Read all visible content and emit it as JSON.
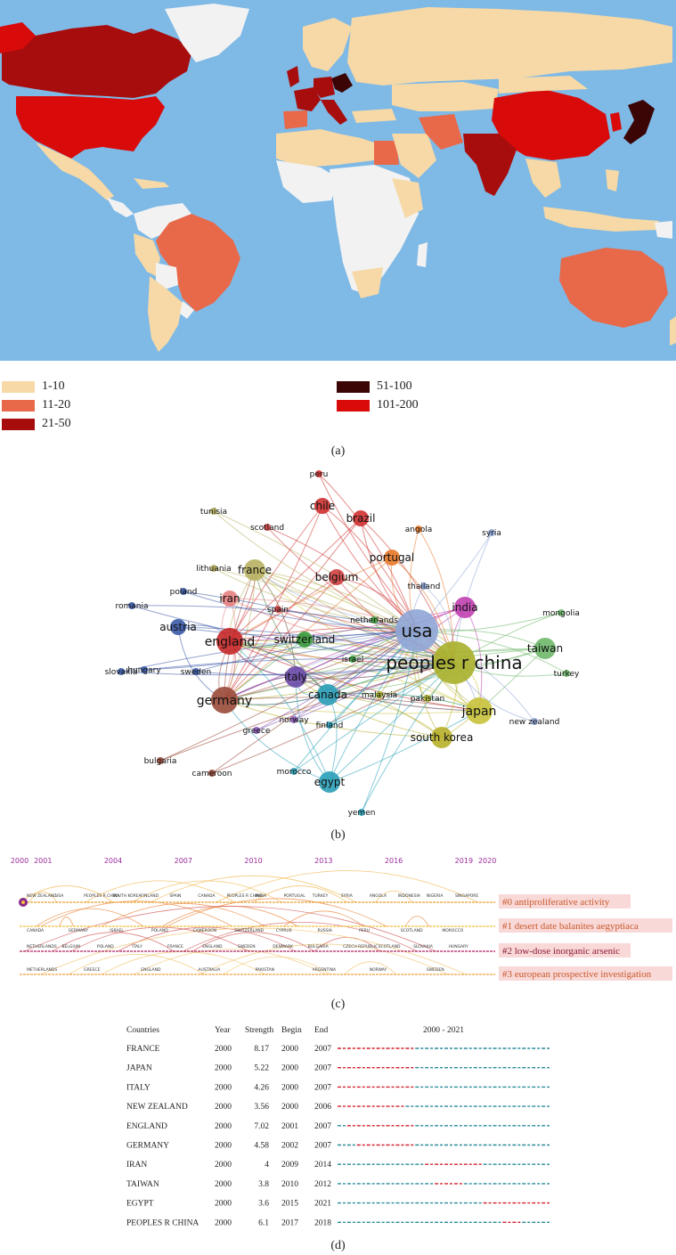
{
  "map": {
    "legend": [
      {
        "label": "1-10",
        "color": "#f6d9a6"
      },
      {
        "label": "11-20",
        "color": "#e8694a"
      },
      {
        "label": "21-50",
        "color": "#a80d0d"
      },
      {
        "label": "51-100",
        "color": "#3b0505"
      },
      {
        "label": "101-200",
        "color": "#d90a0a"
      }
    ],
    "colors": {
      "ocean": "#7fb9e6",
      "land_none": "#f2f2f2"
    }
  },
  "captions": {
    "a": "(a)",
    "b": "(b)",
    "c": "(c)",
    "d": "(d)"
  },
  "network": {
    "nodes": [
      {
        "label": "usa",
        "color": "#8ea6d6",
        "size": "xl"
      },
      {
        "label": "peoples r china",
        "color": "#a8b02a",
        "size": "xl"
      },
      {
        "label": "germany",
        "color": "#9a4a3a",
        "size": "l"
      },
      {
        "label": "england",
        "color": "#c62828",
        "size": "l"
      },
      {
        "label": "japan",
        "color": "#c8c23a",
        "size": "l"
      },
      {
        "label": "italy",
        "color": "#6a4aa8",
        "size": "m"
      },
      {
        "label": "canada",
        "color": "#2aa0b8",
        "size": "m"
      },
      {
        "label": "taiwan",
        "color": "#6fb86a",
        "size": "m"
      },
      {
        "label": "south korea",
        "color": "#b8b02a",
        "size": "m"
      },
      {
        "label": "france",
        "color": "#b8b060",
        "size": "m"
      },
      {
        "label": "egypt",
        "color": "#2aa0b8",
        "size": "m"
      },
      {
        "label": "switzerland",
        "color": "#3a9a3a",
        "size": "s"
      },
      {
        "label": "austria",
        "color": "#3a5aa8",
        "size": "s"
      },
      {
        "label": "india",
        "color": "#c040b0",
        "size": "m"
      },
      {
        "label": "brazil",
        "color": "#d03030",
        "size": "s"
      },
      {
        "label": "chile",
        "color": "#d03030",
        "size": "s"
      },
      {
        "label": "portugal",
        "color": "#e87a2a",
        "size": "s"
      },
      {
        "label": "belgium",
        "color": "#d04040",
        "size": "s"
      },
      {
        "label": "netherlands",
        "color": "#3a9a3a",
        "size": "xs"
      },
      {
        "label": "israel",
        "color": "#3a9a3a",
        "size": "xs"
      },
      {
        "label": "spain",
        "color": "#d04040",
        "size": "xs"
      },
      {
        "label": "iran",
        "color": "#e88080",
        "size": "s"
      },
      {
        "label": "poland",
        "color": "#3a5aa8",
        "size": "xs"
      },
      {
        "label": "sweden",
        "color": "#3a5aa8",
        "size": "xs"
      },
      {
        "label": "greece",
        "color": "#8a5ab8",
        "size": "xs"
      },
      {
        "label": "finland",
        "color": "#2aa0b8",
        "size": "xs"
      },
      {
        "label": "norway",
        "color": "#8a5ab8",
        "size": "xs"
      },
      {
        "label": "malaysia",
        "color": "#a8b02a",
        "size": "xs"
      },
      {
        "label": "pakistan",
        "color": "#a8b02a",
        "size": "xs"
      },
      {
        "label": "new zealand",
        "color": "#8ea6d6",
        "size": "xs"
      },
      {
        "label": "mongolia",
        "color": "#6fb86a",
        "size": "xs"
      },
      {
        "label": "turkey",
        "color": "#6fb86a",
        "size": "xs"
      },
      {
        "label": "thailand",
        "color": "#8ea6d6",
        "size": "xs"
      },
      {
        "label": "syria",
        "color": "#8ea6d6",
        "size": "xs"
      },
      {
        "label": "angola",
        "color": "#e87a2a",
        "size": "xs"
      },
      {
        "label": "peru",
        "color": "#d03030",
        "size": "xs"
      },
      {
        "label": "tunisia",
        "color": "#b8b060",
        "size": "xs"
      },
      {
        "label": "scotland",
        "color": "#d04040",
        "size": "xs"
      },
      {
        "label": "lithuania",
        "color": "#b8b060",
        "size": "xs"
      },
      {
        "label": "romania",
        "color": "#3a5aa8",
        "size": "xs"
      },
      {
        "label": "hungary",
        "color": "#3a5aa8",
        "size": "xs"
      },
      {
        "label": "slovakia",
        "color": "#3a5aa8",
        "size": "xs"
      },
      {
        "label": "bulgaria",
        "color": "#9a4a3a",
        "size": "xs"
      },
      {
        "label": "cameroon",
        "color": "#9a4a3a",
        "size": "xs"
      },
      {
        "label": "morocco",
        "color": "#2aa0b8",
        "size": "xs"
      },
      {
        "label": "yemen",
        "color": "#2aa0b8",
        "size": "xs"
      }
    ]
  },
  "timeline": {
    "years": [
      "2000",
      "2001",
      "2004",
      "2007",
      "2010",
      "2013",
      "2016",
      "2019",
      "2020"
    ],
    "clusters": [
      {
        "label": "#0 antiproliferative activity",
        "color": "#e8a030"
      },
      {
        "label": "#1 desert date balanites aegyptiaca",
        "color": "#f0c040"
      },
      {
        "label": "#2 low-dose inorganic arsenic",
        "color": "#b02060"
      },
      {
        "label": "#3 european prospective investigation",
        "color": "#f0a040"
      }
    ],
    "row_labels": {
      "r0": [
        "NEW ZEALAND",
        "USA",
        "PEOPLES R CHINA",
        "SOUTH KOREA",
        "FINLAND",
        "SPAIN",
        "CANADA",
        "PEOPLES R CHINA",
        "INDIA",
        "PORTUGAL",
        "TURKEY",
        "SYRIA",
        "ANGOLA",
        "INDONESIA",
        "NIGERIA",
        "SINGAPORE"
      ],
      "r1": [
        "CANADA",
        "GERMANY",
        "ISRAEL",
        "POLAND",
        "CAMEROON",
        "SWITZERLAND",
        "CYPRUS",
        "RUSSIA",
        "PERU",
        "SCOTLAND",
        "MOROCCO"
      ],
      "r2": [
        "NETHERLANDS",
        "BELGIUM",
        "POLAND",
        "ITALY",
        "FRANCE",
        "ENGLAND",
        "SWEDEN",
        "DENMARK",
        "BULGARIA",
        "CZECH REPUBLIC",
        "SCOTLAND",
        "SLOVAKIA",
        "HUNGARY"
      ],
      "r3": [
        "METHERLANDS",
        "GREECE",
        "ENGLAND",
        "AUSTRALIA",
        "PAKISTAN",
        "ARGENTINA",
        "NORWAY",
        "SWEDEN"
      ]
    }
  },
  "burst": {
    "headers": {
      "country": "Countries",
      "year": "Year",
      "strength": "Strength",
      "begin": "Begin",
      "end": "End",
      "range": "2000 - 2021"
    },
    "range_start": 2000,
    "range_end": 2021,
    "colors": {
      "active": "#d2202c",
      "inactive": "#2a8a9a"
    },
    "rows": [
      {
        "country": "FRANCE",
        "year": "2000",
        "strength": "8.17",
        "begin": "2000",
        "end": "2007"
      },
      {
        "country": "JAPAN",
        "year": "2000",
        "strength": "5.22",
        "begin": "2000",
        "end": "2007"
      },
      {
        "country": "ITALY",
        "year": "2000",
        "strength": "4.26",
        "begin": "2000",
        "end": "2007"
      },
      {
        "country": "NEW ZEALAND",
        "year": "2000",
        "strength": "3.56",
        "begin": "2000",
        "end": "2006"
      },
      {
        "country": "ENGLAND",
        "year": "2000",
        "strength": "7.02",
        "begin": "2001",
        "end": "2007"
      },
      {
        "country": "GERMANY",
        "year": "2000",
        "strength": "4.58",
        "begin": "2002",
        "end": "2007"
      },
      {
        "country": "IRAN",
        "year": "2000",
        "strength": "4",
        "begin": "2009",
        "end": "2014"
      },
      {
        "country": "TAIWAN",
        "year": "2000",
        "strength": "3.8",
        "begin": "2010",
        "end": "2012"
      },
      {
        "country": "EGYPT",
        "year": "2000",
        "strength": "3.6",
        "begin": "2015",
        "end": "2021"
      },
      {
        "country": "PEOPLES R CHINA",
        "year": "2000",
        "strength": "6.1",
        "begin": "2017",
        "end": "2018"
      }
    ]
  },
  "chart_data": [
    {
      "type": "heatmap",
      "subtype": "choropleth world map",
      "bins": [
        "1-10",
        "11-20",
        "21-50",
        "51-100",
        "101-200"
      ],
      "countries": {
        "101-200": [
          "USA",
          "PEOPLES R CHINA"
        ],
        "51-100": [
          "JAPAN"
        ],
        "21-50": [
          "CANADA",
          "INDIA",
          "GERMANY",
          "ITALY"
        ],
        "11-20": [
          "BRAZIL",
          "AUSTRALIA",
          "IRAN",
          "EGYPT",
          "SPAIN"
        ]
      }
    },
    {
      "type": "scatter",
      "subtype": "country co-authorship network",
      "node_labels": [
        "usa",
        "peoples r china",
        "germany",
        "england",
        "japan",
        "italy",
        "canada",
        "taiwan",
        "south korea",
        "france",
        "egypt",
        "india"
      ]
    },
    {
      "type": "line",
      "subtype": "cluster timeline",
      "x": [
        2000,
        2001,
        2004,
        2007,
        2010,
        2013,
        2016,
        2019,
        2020
      ],
      "series": [
        {
          "name": "#0 antiproliferative activity"
        },
        {
          "name": "#1 desert date balanites aegyptiaca"
        },
        {
          "name": "#2 low-dose inorganic arsenic"
        },
        {
          "name": "#3 european prospective investigation"
        }
      ]
    },
    {
      "type": "table",
      "subtype": "citation bursts",
      "columns": [
        "Countries",
        "Year",
        "Strength",
        "Begin",
        "End"
      ],
      "rows": [
        [
          "FRANCE",
          2000,
          8.17,
          2000,
          2007
        ],
        [
          "JAPAN",
          2000,
          5.22,
          2000,
          2007
        ],
        [
          "ITALY",
          2000,
          4.26,
          2000,
          2007
        ],
        [
          "NEW ZEALAND",
          2000,
          3.56,
          2000,
          2006
        ],
        [
          "ENGLAND",
          2000,
          7.02,
          2001,
          2007
        ],
        [
          "GERMANY",
          2000,
          4.58,
          2002,
          2007
        ],
        [
          "IRAN",
          2000,
          4,
          2009,
          2014
        ],
        [
          "TAIWAN",
          2000,
          3.8,
          2010,
          2012
        ],
        [
          "EGYPT",
          2000,
          3.6,
          2015,
          2021
        ],
        [
          "PEOPLES R CHINA",
          2000,
          6.1,
          2017,
          2018
        ]
      ]
    }
  ]
}
